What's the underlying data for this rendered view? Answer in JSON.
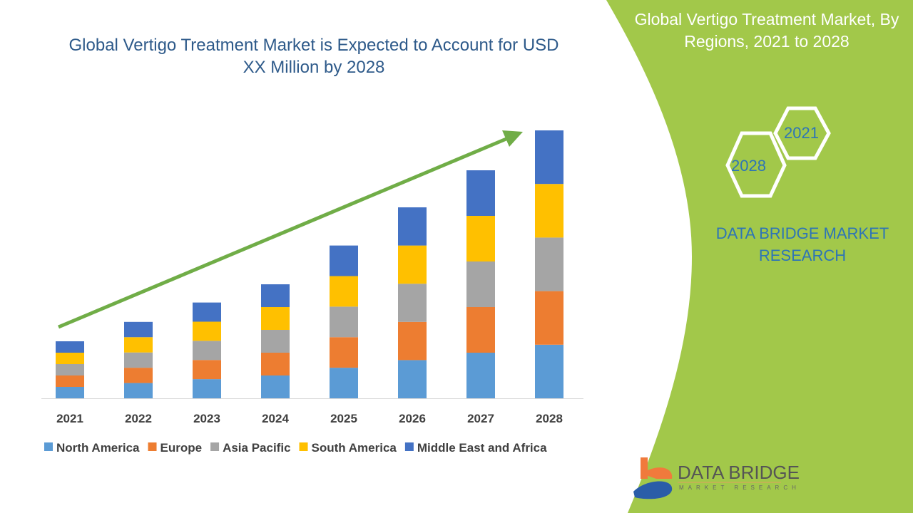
{
  "chart_data": {
    "type": "bar",
    "stacked": true,
    "title": "Global Vertigo Treatment Market is Expected to Account for USD XX Million by 2028",
    "categories": [
      "2021",
      "2022",
      "2023",
      "2024",
      "2025",
      "2026",
      "2027",
      "2028"
    ],
    "series": [
      {
        "name": "North America",
        "color": "#5b9bd5",
        "values": [
          1.0,
          1.34,
          1.68,
          2.0,
          2.68,
          3.35,
          4.0,
          4.7
        ]
      },
      {
        "name": "Europe",
        "color": "#ed7d31",
        "values": [
          1.0,
          1.34,
          1.68,
          2.0,
          2.68,
          3.35,
          4.0,
          4.7
        ]
      },
      {
        "name": "Asia Pacific",
        "color": "#a5a5a5",
        "values": [
          1.0,
          1.34,
          1.68,
          2.0,
          2.68,
          3.35,
          4.0,
          4.7
        ]
      },
      {
        "name": "South America",
        "color": "#ffc000",
        "values": [
          1.0,
          1.34,
          1.68,
          2.0,
          2.68,
          3.35,
          4.0,
          4.7
        ]
      },
      {
        "name": "Middle East and Africa",
        "color": "#4472c4",
        "values": [
          1.0,
          1.34,
          1.68,
          2.0,
          2.68,
          3.35,
          4.0,
          4.7
        ]
      }
    ],
    "xlabel": "",
    "ylabel": "",
    "ylim": [
      0,
      24
    ],
    "grid": false,
    "legend": "bottom",
    "trend_arrow_color": "#70ad47"
  },
  "side": {
    "title": "Global Vertigo Treatment Market, By Regions, 2021 to 2028",
    "hex_a": "2021",
    "hex_b": "2028",
    "brand": "DATA BRIDGE MARKET RESEARCH",
    "panel_color": "#a2c84a"
  },
  "logo": {
    "name": "DATA BRIDGE",
    "sub": "MARKET RESEARCH"
  }
}
